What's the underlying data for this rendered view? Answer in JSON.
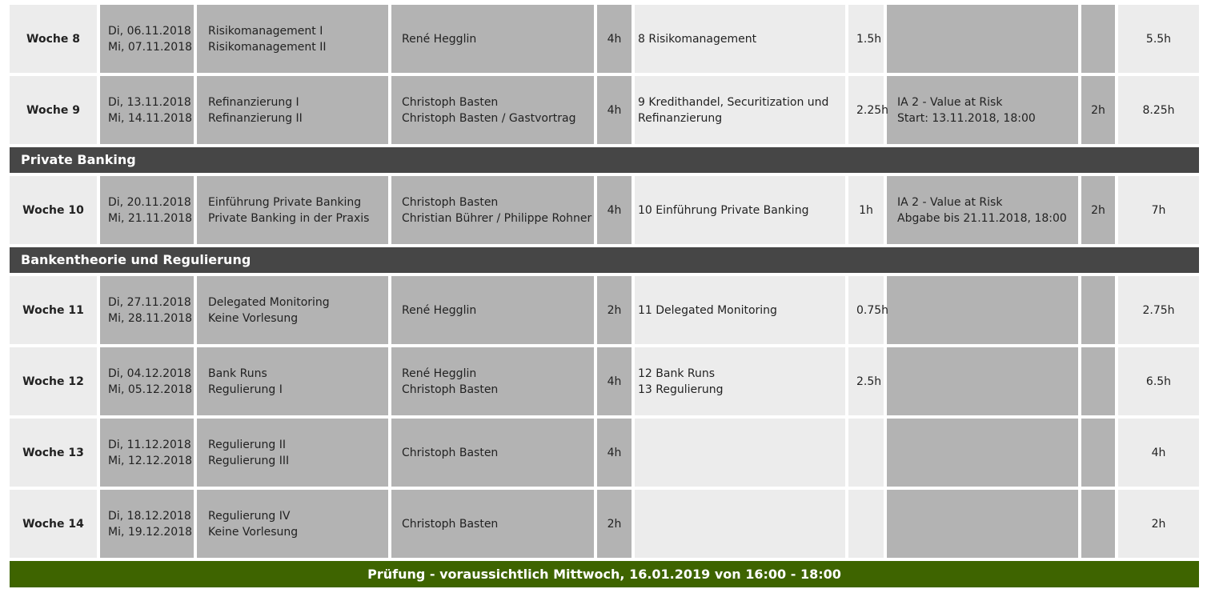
{
  "rows_part1": [
    {
      "week": "Woche 8",
      "dates": [
        "Di, 06.11.2018",
        "Mi, 07.11.2018"
      ],
      "topics": [
        "Risikomanagement I",
        "Risikomanagement II"
      ],
      "lecturers": [
        "René Hegglin"
      ],
      "lecture_hours": "4h",
      "reading": [
        "8 Risikomanagement"
      ],
      "reading_hours": "1.5h",
      "assignment": [],
      "assignment_hours": "",
      "total": "5.5h"
    },
    {
      "week": "Woche 9",
      "dates": [
        "Di, 13.11.2018",
        "Mi, 14.11.2018"
      ],
      "topics": [
        "Refinanzierung I",
        "Refinanzierung II"
      ],
      "lecturers": [
        "Christoph Basten",
        "Christoph Basten / Gastvortrag"
      ],
      "lecture_hours": "4h",
      "reading": [
        "9 Kredithandel, Securitization und Refinanzierung"
      ],
      "reading_hours": "2.25h",
      "assignment": [
        "IA 2 - Value at Risk",
        "Start: 13.11.2018, 18:00"
      ],
      "assignment_hours": "2h",
      "total": "8.25h"
    }
  ],
  "section_private": "Private Banking",
  "rows_part2": [
    {
      "week": "Woche 10",
      "dates": [
        "Di, 20.11.2018",
        "Mi, 21.11.2018"
      ],
      "topics": [
        "Einführung Private Banking",
        "Private Banking in der Praxis"
      ],
      "lecturers": [
        "Christoph Basten",
        "Christian Bührer / Philippe Rohner"
      ],
      "lecture_hours": "4h",
      "reading": [
        "10 Einführung Private Banking"
      ],
      "reading_hours": "1h",
      "assignment": [
        "IA 2 - Value at Risk",
        "Abgabe bis 21.11.2018, 18:00"
      ],
      "assignment_hours": "2h",
      "total": "7h"
    }
  ],
  "section_theory": "Bankentheorie und Regulierung",
  "rows_part3": [
    {
      "week": "Woche 11",
      "dates": [
        "Di, 27.11.2018",
        "Mi, 28.11.2018"
      ],
      "topics": [
        "Delegated Monitoring",
        "Keine Vorlesung"
      ],
      "lecturers": [
        "René Hegglin"
      ],
      "lecture_hours": "2h",
      "reading": [
        "11 Delegated Monitoring"
      ],
      "reading_hours": "0.75h",
      "assignment": [],
      "assignment_hours": "",
      "total": "2.75h"
    },
    {
      "week": "Woche 12",
      "dates": [
        "Di, 04.12.2018",
        "Mi, 05.12.2018"
      ],
      "topics": [
        "Bank Runs",
        "Regulierung I"
      ],
      "lecturers": [
        "René Hegglin",
        "Christoph Basten"
      ],
      "lecture_hours": "4h",
      "reading": [
        "12 Bank Runs",
        "13 Regulierung"
      ],
      "reading_hours": "2.5h",
      "assignment": [],
      "assignment_hours": "",
      "total": "6.5h"
    },
    {
      "week": "Woche 13",
      "dates": [
        "Di, 11.12.2018",
        "Mi, 12.12.2018"
      ],
      "topics": [
        "Regulierung II",
        "Regulierung III"
      ],
      "lecturers": [
        "Christoph Basten"
      ],
      "lecture_hours": "4h",
      "reading": [],
      "reading_hours": "",
      "assignment": [],
      "assignment_hours": "",
      "total": "4h"
    },
    {
      "week": "Woche 14",
      "dates": [
        "Di, 18.12.2018",
        "Mi, 19.12.2018"
      ],
      "topics": [
        "Regulierung IV",
        "Keine Vorlesung"
      ],
      "lecturers": [
        "Christoph Basten"
      ],
      "lecture_hours": "2h",
      "reading": [],
      "reading_hours": "",
      "assignment": [],
      "assignment_hours": "",
      "total": "2h"
    }
  ],
  "footer_exam": "Prüfung - voraussichtlich Mittwoch, 16.01.2019 von 16:00 - 18:00",
  "colors": {
    "cell_light": "#ececec",
    "cell_dark": "#b3b3b3",
    "section_bg": "#464646",
    "footer_bg": "#3e6400"
  }
}
